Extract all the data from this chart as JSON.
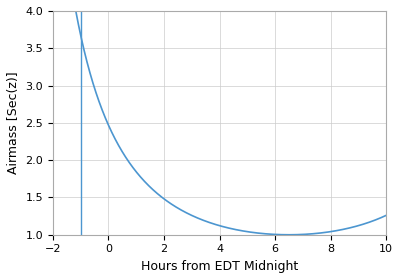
{
  "title": "",
  "xlabel": "Hours from EDT Midnight",
  "ylabel": "Airmass [Sec(z)]",
  "xlim": [
    -2,
    10
  ],
  "ylim": [
    1.0,
    4.0
  ],
  "xticks": [
    -2,
    0,
    2,
    4,
    6,
    8,
    10
  ],
  "yticks": [
    1.0,
    1.5,
    2.0,
    2.5,
    3.0,
    3.5,
    4.0
  ],
  "line_color": "#4c96d0",
  "vline_x": -1,
  "vline_color": "#4c96d0",
  "background_color": "#ffffff",
  "grid_color": "#cccccc",
  "figsize": [
    4.0,
    2.8
  ],
  "dpi": 100,
  "lat_deg": 43.0,
  "dec_deg": 44.0,
  "transit_hour": 6.5
}
